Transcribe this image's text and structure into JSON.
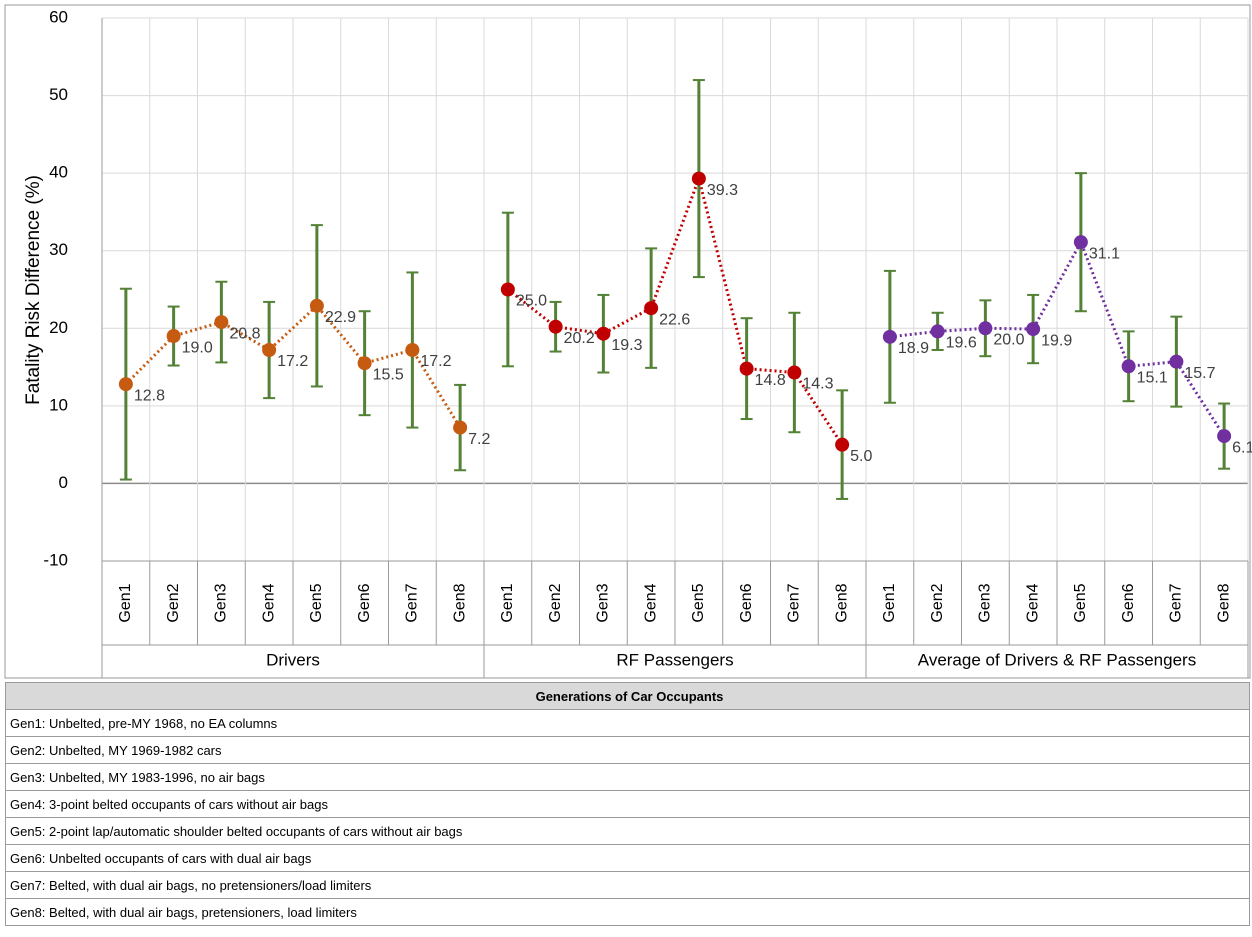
{
  "chart_data": {
    "type": "line",
    "y_label": "Fatality Risk Difference (%)",
    "categories": [
      "Gen1",
      "Gen2",
      "Gen3",
      "Gen4",
      "Gen5",
      "Gen6",
      "Gen7",
      "Gen8"
    ],
    "ylim": [
      -10,
      60
    ],
    "yticks": [
      -10,
      0,
      10,
      20,
      30,
      40,
      50,
      60
    ],
    "grid": true,
    "error_color": "#538135",
    "series": [
      {
        "name": "Drivers",
        "color": "#c55a11",
        "values": [
          12.8,
          19.0,
          20.8,
          17.2,
          22.9,
          15.5,
          17.2,
          7.2
        ],
        "value_labels": [
          "12.8",
          "19.0",
          "20.8",
          "17.2",
          "22.9",
          "15.5",
          "17.2",
          "7.2"
        ],
        "errors": [
          12.3,
          3.8,
          5.2,
          6.2,
          10.4,
          6.7,
          10,
          5.5
        ]
      },
      {
        "name": "RF Passengers",
        "color": "#c00000",
        "values": [
          25.0,
          20.2,
          19.3,
          22.6,
          39.3,
          14.8,
          14.3,
          5.0
        ],
        "value_labels": [
          "25.0",
          "20.2",
          "19.3",
          "22.6",
          "39.3",
          "14.8",
          "14.3",
          "5.0"
        ],
        "errors": [
          9.9,
          3.2,
          5,
          7.7,
          12.7,
          6.5,
          7.7,
          7
        ]
      },
      {
        "name": "Average of Drivers & RF Passengers",
        "color": "#7030a0",
        "values": [
          18.9,
          19.6,
          20.0,
          19.9,
          31.1,
          15.1,
          15.7,
          6.1
        ],
        "value_labels": [
          "18.9",
          "19.6",
          "20.0",
          "19.9",
          "31.1",
          "15.1",
          "15.7",
          "6.1"
        ],
        "errors": [
          8.5,
          2.4,
          3.6,
          4.4,
          8.9,
          4.5,
          5.8,
          4.2
        ]
      }
    ]
  },
  "table": {
    "title": "Generations of Car Occupants",
    "rows": [
      "Gen1: Unbelted, pre-MY 1968, no EA columns",
      "Gen2: Unbelted, MY 1969-1982 cars",
      "Gen3: Unbelted, MY 1983-1996, no air bags",
      "Gen4: 3-point belted occupants of cars without air bags",
      "Gen5: 2-point lap/automatic shoulder belted occupants of cars without air bags",
      "Gen6: Unbelted occupants of cars with dual air bags",
      "Gen7: Belted, with dual air bags, no pretensioners/load limiters",
      "Gen8: Belted, with dual air bags, pretensioners, load limiters"
    ]
  }
}
